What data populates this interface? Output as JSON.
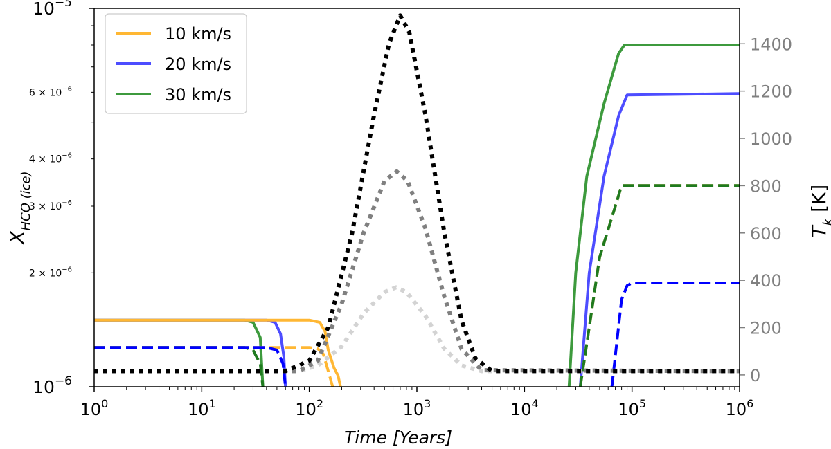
{
  "chart_data": {
    "type": "line",
    "xscale": "log",
    "xlim": [
      1,
      1000000
    ],
    "xlabel": {
      "prefix": "Time",
      "unit": "[Years]"
    },
    "x_ticks": [
      {
        "value": 1,
        "base": "10",
        "exp": "0"
      },
      {
        "value": 10,
        "base": "10",
        "exp": "1"
      },
      {
        "value": 100,
        "base": "10",
        "exp": "2"
      },
      {
        "value": 1000,
        "base": "10",
        "exp": "3"
      },
      {
        "value": 10000,
        "base": "10",
        "exp": "4"
      },
      {
        "value": 100000,
        "base": "10",
        "exp": "5"
      },
      {
        "value": 1000000,
        "base": "10",
        "exp": "6"
      }
    ],
    "y_left": {
      "scale": "log",
      "lim": [
        1e-06,
        1e-05
      ],
      "label": {
        "symbol": "X",
        "subscript": "HCO (ice)"
      },
      "major_ticks": [
        {
          "value": 1e-06,
          "base": "10",
          "exp": "−6"
        },
        {
          "value": 1e-05,
          "base": "10",
          "exp": "−5"
        }
      ],
      "minor_ticks": [
        {
          "value": 2e-06,
          "mant": "2 × 10",
          "exp": "−6"
        },
        {
          "value": 3e-06,
          "mant": "3 × 10",
          "exp": "−6"
        },
        {
          "value": 4e-06,
          "mant": "4 × 10",
          "exp": "−6"
        },
        {
          "value": 6e-06,
          "mant": "6 × 10",
          "exp": "−6"
        }
      ]
    },
    "y_right": {
      "scale": "linear",
      "lim": [
        -50,
        1550
      ],
      "label": {
        "symbol": "T",
        "subscript": "k",
        "unit": "[K]"
      },
      "ticks": [
        "0",
        "200",
        "400",
        "600",
        "800",
        "1000",
        "1200",
        "1400"
      ],
      "color": "#808080"
    },
    "legend": {
      "position": "top-left",
      "entries": [
        {
          "label": "10 km/s",
          "color": "#ffb733"
        },
        {
          "label": "20 km/s",
          "color": "#4d4dff"
        },
        {
          "label": "30 km/s",
          "color": "#3d9a3d"
        }
      ]
    },
    "series": [
      {
        "name": "30 km/s solid",
        "axis": "left",
        "style": "solid",
        "color": "#3d9a3d",
        "points": [
          [
            1,
            1.5e-06
          ],
          [
            25,
            1.5e-06
          ],
          [
            30,
            1.48e-06
          ],
          [
            35,
            1.35e-06
          ],
          [
            37,
            1e-06
          ]
        ]
      },
      {
        "name": "30 km/s solid (late)",
        "axis": "left",
        "style": "solid",
        "color": "#3d9a3d",
        "points": [
          [
            26000,
            1e-06
          ],
          [
            30000,
            2e-06
          ],
          [
            38000,
            3.6e-06
          ],
          [
            55000,
            5.6e-06
          ],
          [
            75000,
            7.6e-06
          ],
          [
            85000,
            8e-06
          ],
          [
            1000000,
            8e-06
          ]
        ]
      },
      {
        "name": "20 km/s solid",
        "axis": "left",
        "style": "solid",
        "color": "#4d4dff",
        "points": [
          [
            1,
            1.5e-06
          ],
          [
            40,
            1.5e-06
          ],
          [
            48,
            1.48e-06
          ],
          [
            54,
            1.38e-06
          ],
          [
            58,
            1.2e-06
          ],
          [
            60,
            1e-06
          ]
        ]
      },
      {
        "name": "20 km/s solid (late)",
        "axis": "left",
        "style": "solid",
        "color": "#4d4dff",
        "points": [
          [
            33000,
            1e-06
          ],
          [
            40000,
            2e-06
          ],
          [
            55000,
            3.6e-06
          ],
          [
            75000,
            5.2e-06
          ],
          [
            90000,
            5.9e-06
          ],
          [
            1000000,
            5.95e-06
          ]
        ]
      },
      {
        "name": "10 km/s solid",
        "axis": "left",
        "style": "solid",
        "color": "#ffb733",
        "points": [
          [
            1,
            1.5e-06
          ],
          [
            100,
            1.5e-06
          ],
          [
            125,
            1.48e-06
          ],
          [
            140,
            1.4e-06
          ],
          [
            150,
            1.25e-06
          ],
          [
            170,
            1.12e-06
          ],
          [
            185,
            1.07e-06
          ],
          [
            195,
            1e-06
          ]
        ]
      },
      {
        "name": "10 km/s dashed",
        "axis": "left",
        "style": "dashed",
        "color": "#ffb733",
        "points": [
          [
            1,
            1.27e-06
          ],
          [
            100,
            1.27e-06
          ],
          [
            120,
            1.26e-06
          ],
          [
            135,
            1.22e-06
          ],
          [
            150,
            1.1e-06
          ],
          [
            165,
            1e-06
          ]
        ]
      },
      {
        "name": "10 km/s dashed (late)",
        "axis": "left",
        "style": "dashed",
        "color": "#ffb733",
        "points": [
          [
            33000,
            1e-06
          ],
          [
            38000,
            1.3e-06
          ],
          [
            50000,
            2.2e-06
          ],
          [
            70000,
            3e-06
          ],
          [
            80000,
            3.4e-06
          ],
          [
            1000000,
            3.4e-06
          ]
        ]
      },
      {
        "name": "30 km/s dashed",
        "axis": "left",
        "style": "dashed",
        "color": "#1f7a1f",
        "points": [
          [
            1,
            1.27e-06
          ],
          [
            25,
            1.27e-06
          ],
          [
            30,
            1.25e-06
          ],
          [
            35,
            1.15e-06
          ],
          [
            37,
            1e-06
          ]
        ]
      },
      {
        "name": "30 km/s dashed (late)",
        "axis": "left",
        "style": "dashed",
        "color": "#1f7a1f",
        "points": [
          [
            33000,
            1e-06
          ],
          [
            38000,
            1.3e-06
          ],
          [
            50000,
            2.2e-06
          ],
          [
            70000,
            3e-06
          ],
          [
            80000,
            3.4e-06
          ],
          [
            1000000,
            3.4e-06
          ]
        ]
      },
      {
        "name": "20 km/s dashed",
        "axis": "left",
        "style": "dashed",
        "color": "#0000ff",
        "points": [
          [
            1,
            1.27e-06
          ],
          [
            40,
            1.27e-06
          ],
          [
            50,
            1.25e-06
          ],
          [
            57,
            1.15e-06
          ],
          [
            60,
            1e-06
          ]
        ]
      },
      {
        "name": "20 km/s dashed (late)",
        "axis": "left",
        "style": "dashed",
        "color": "#0000ff",
        "points": [
          [
            65000,
            1e-06
          ],
          [
            72000,
            1.3e-06
          ],
          [
            80000,
            1.7e-06
          ],
          [
            90000,
            1.85e-06
          ],
          [
            100000,
            1.88e-06
          ],
          [
            1000000,
            1.88e-06
          ]
        ]
      },
      {
        "name": "T 10 km/s",
        "axis": "right",
        "style": "dotted",
        "color": "#d3d3d3",
        "points": [
          [
            1,
            16
          ],
          [
            80,
            16
          ],
          [
            120,
            40
          ],
          [
            200,
            120
          ],
          [
            320,
            260
          ],
          [
            500,
            350
          ],
          [
            640,
            370
          ],
          [
            800,
            350
          ],
          [
            1200,
            250
          ],
          [
            1800,
            110
          ],
          [
            2600,
            40
          ],
          [
            4000,
            16
          ],
          [
            1000000,
            16
          ]
        ]
      },
      {
        "name": "T 20 km/s",
        "axis": "right",
        "style": "dotted",
        "color": "#808080",
        "points": [
          [
            1,
            16
          ],
          [
            80,
            16
          ],
          [
            120,
            60
          ],
          [
            200,
            300
          ],
          [
            320,
            600
          ],
          [
            500,
            820
          ],
          [
            650,
            860
          ],
          [
            820,
            820
          ],
          [
            1200,
            620
          ],
          [
            1800,
            330
          ],
          [
            2600,
            110
          ],
          [
            4000,
            20
          ],
          [
            1000000,
            16
          ]
        ]
      },
      {
        "name": "T 30 km/s",
        "axis": "right",
        "style": "dotted",
        "color": "#000000",
        "points": [
          [
            1,
            16
          ],
          [
            60,
            16
          ],
          [
            100,
            60
          ],
          [
            150,
            200
          ],
          [
            250,
            600
          ],
          [
            400,
            1100
          ],
          [
            550,
            1400
          ],
          [
            700,
            1520
          ],
          [
            850,
            1450
          ],
          [
            1200,
            1100
          ],
          [
            1800,
            600
          ],
          [
            2600,
            230
          ],
          [
            3500,
            70
          ],
          [
            5000,
            16
          ],
          [
            1000000,
            16
          ]
        ]
      }
    ]
  }
}
